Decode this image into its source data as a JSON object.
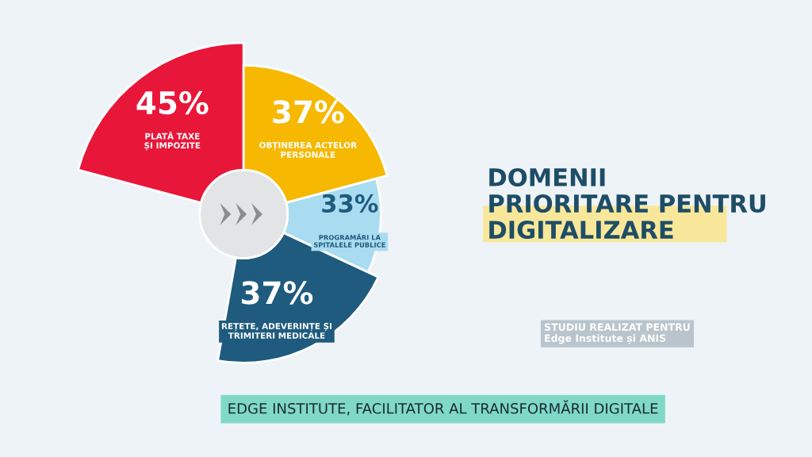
{
  "chart_data": {
    "type": "other",
    "title": "DOMENII\nPRIORITARE PENTRU\nDIGITALIZARE",
    "categories": [
      "PLATĂ TAXE\nȘI IMPOZITE",
      "OBȚINEREA ACTELOR\nPERSONALE",
      "PROGRAMĂRI LA\nSPITALELE PUBLICE",
      "REȚETE, ADEVERINȚE ȘI\nTRIMITERI MEDICALE"
    ],
    "values": [
      45,
      37,
      33,
      37
    ],
    "value_labels": [
      "45%",
      "37%",
      "33%",
      "37%"
    ],
    "colors": [
      "#e8173a",
      "#f6b800",
      "#a9dcf0",
      "#1e5b7e"
    ],
    "annotations": [
      "STUDIU REALIZAT PENTRU\nEdge Institute și ANIS",
      "EDGE INSTITUTE, FACILITATOR AL TRANSFORMĂRII DIGITALE"
    ]
  }
}
